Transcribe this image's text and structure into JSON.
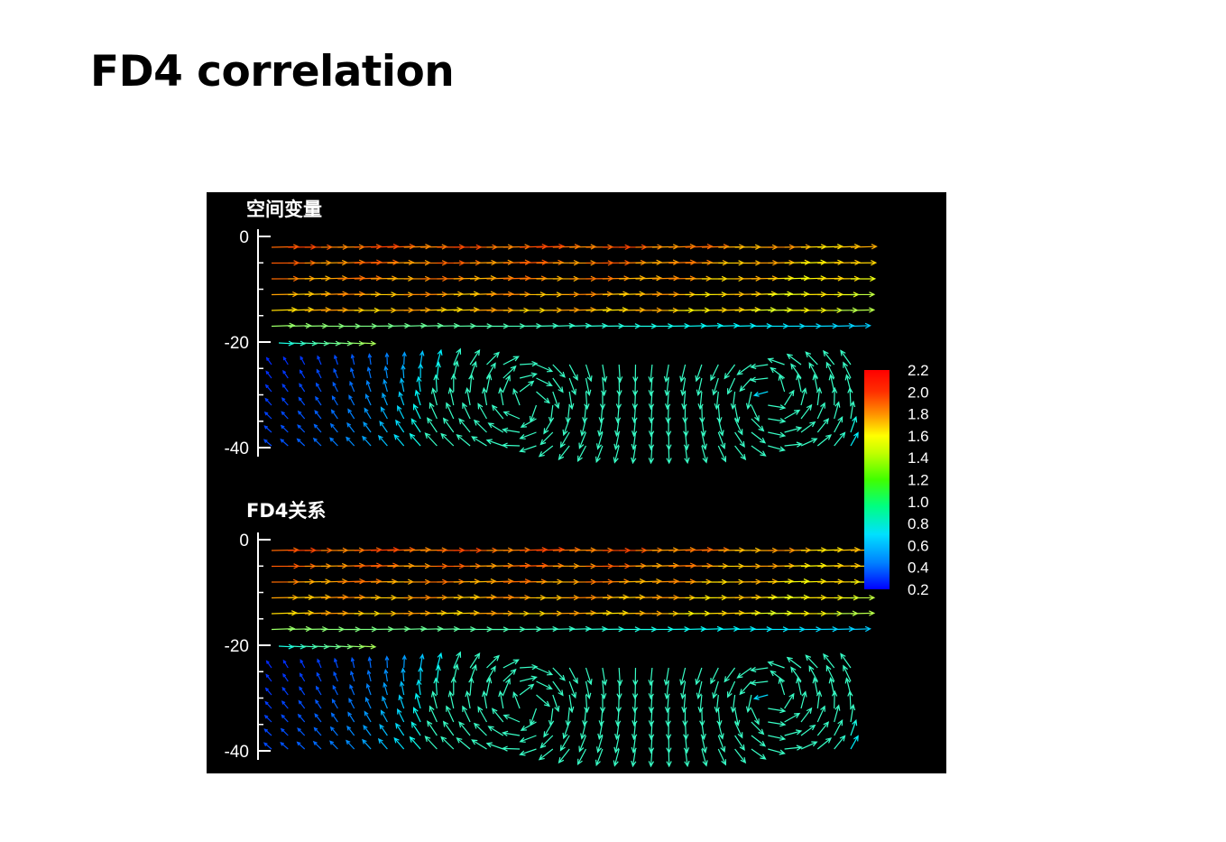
{
  "page": {
    "title": "FD4 correlation"
  },
  "chart_data": {
    "type": "quiver",
    "grid": false,
    "legend_position": "right",
    "colormap": "jet",
    "colorbar": {
      "min": 0.2,
      "max": 2.2,
      "labels": [
        "2.2",
        "2.0",
        "1.8",
        "1.6",
        "1.4",
        "1.2",
        "1.0",
        "0.8",
        "0.6",
        "0.4",
        "0.2"
      ]
    },
    "panels": [
      {
        "label": "空间变量",
        "y_tick_labels": [
          "0",
          "-20",
          "-40"
        ],
        "ylim": [
          -40,
          0
        ]
      },
      {
        "label": "FD4关系",
        "y_tick_labels": [
          "0",
          "-20",
          "-40"
        ],
        "ylim": [
          -40,
          0
        ]
      }
    ]
  }
}
